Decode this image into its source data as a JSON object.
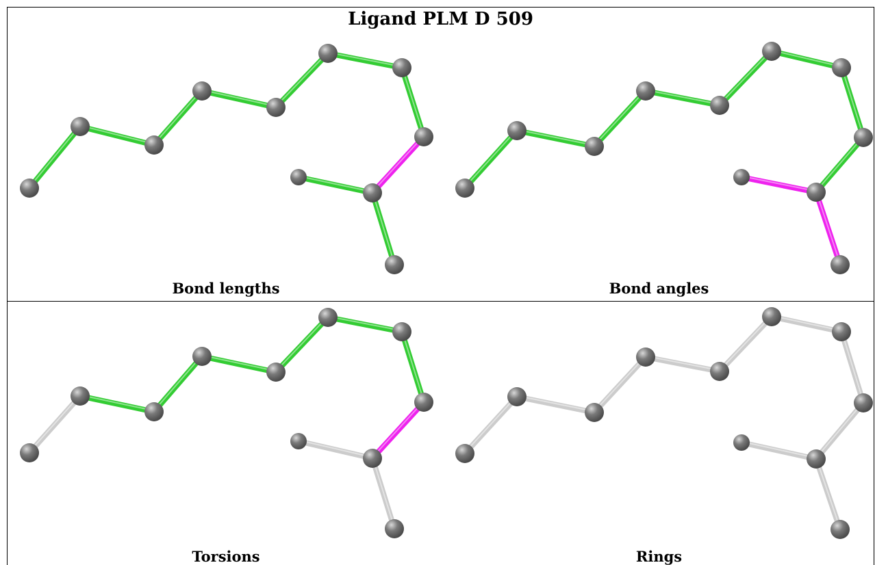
{
  "title": "Ligand PLM D 509",
  "colors": {
    "ok_bond": "#33cc33",
    "outlier_bond": "#ee22ee",
    "unchecked_bond": "#cccccc",
    "atom": "#7a7a7a"
  },
  "panels": [
    {
      "caption": "Bond lengths",
      "highlight": [
        "ok",
        "ok",
        "ok",
        "ok",
        "ok",
        "ok",
        "ok",
        "outlier",
        "ok",
        "ok"
      ]
    },
    {
      "caption": "Bond angles",
      "highlight": [
        "ok",
        "ok",
        "ok",
        "ok",
        "ok",
        "ok",
        "ok",
        "ok",
        "outlier",
        "outlier"
      ]
    },
    {
      "caption": "Torsions",
      "highlight": [
        "grey",
        "ok",
        "ok",
        "ok",
        "ok",
        "ok",
        "ok",
        "outlier",
        "grey",
        "grey"
      ]
    },
    {
      "caption": "Rings",
      "highlight": [
        "grey",
        "grey",
        "grey",
        "grey",
        "grey",
        "grey",
        "grey",
        "grey",
        "grey",
        "grey"
      ]
    }
  ]
}
